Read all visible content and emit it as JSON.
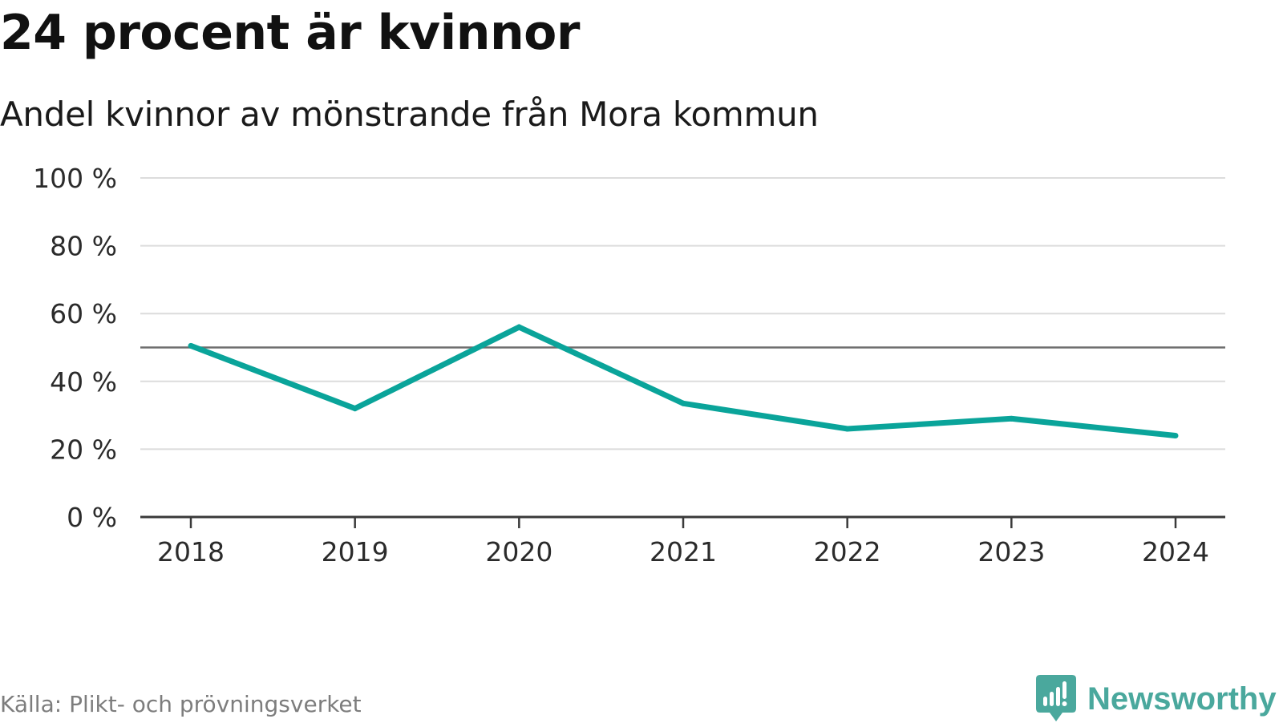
{
  "header": {
    "title": "24 procent är kvinnor",
    "subtitle": "Andel kvinnor av mönstrande från Mora kommun"
  },
  "footer": {
    "source": "Källa: Plikt- och prövningsverket",
    "brand": "Newsworthy",
    "brand_icon": "newsworthy-logo-icon"
  },
  "colors": {
    "line": "#0aa49a",
    "reference_line": "#6e6e6e",
    "grid": "#dcdcdc",
    "axis": "#3a3a3a",
    "tick_text": "#2b2b2b",
    "brand": "#4aa89d"
  },
  "chart_data": {
    "type": "line",
    "title": "24 procent är kvinnor",
    "subtitle": "Andel kvinnor av mönstrande från Mora kommun",
    "xlabel": "",
    "ylabel": "",
    "x": [
      2018,
      2019,
      2020,
      2021,
      2022,
      2023,
      2024
    ],
    "x_tick_labels": [
      "2018",
      "2019",
      "2020",
      "2021",
      "2022",
      "2023",
      "2024"
    ],
    "series": [
      {
        "values": [
          50.5,
          32,
          56,
          33.5,
          26,
          29,
          24
        ]
      }
    ],
    "reference_line": 50,
    "ylim": [
      0,
      100
    ],
    "y_ticks": [
      0,
      20,
      40,
      60,
      80,
      100
    ],
    "y_tick_labels": [
      "0 %",
      "20 %",
      "40 %",
      "60 %",
      "80 %",
      "100 %"
    ],
    "grid": true,
    "legend": "none"
  }
}
